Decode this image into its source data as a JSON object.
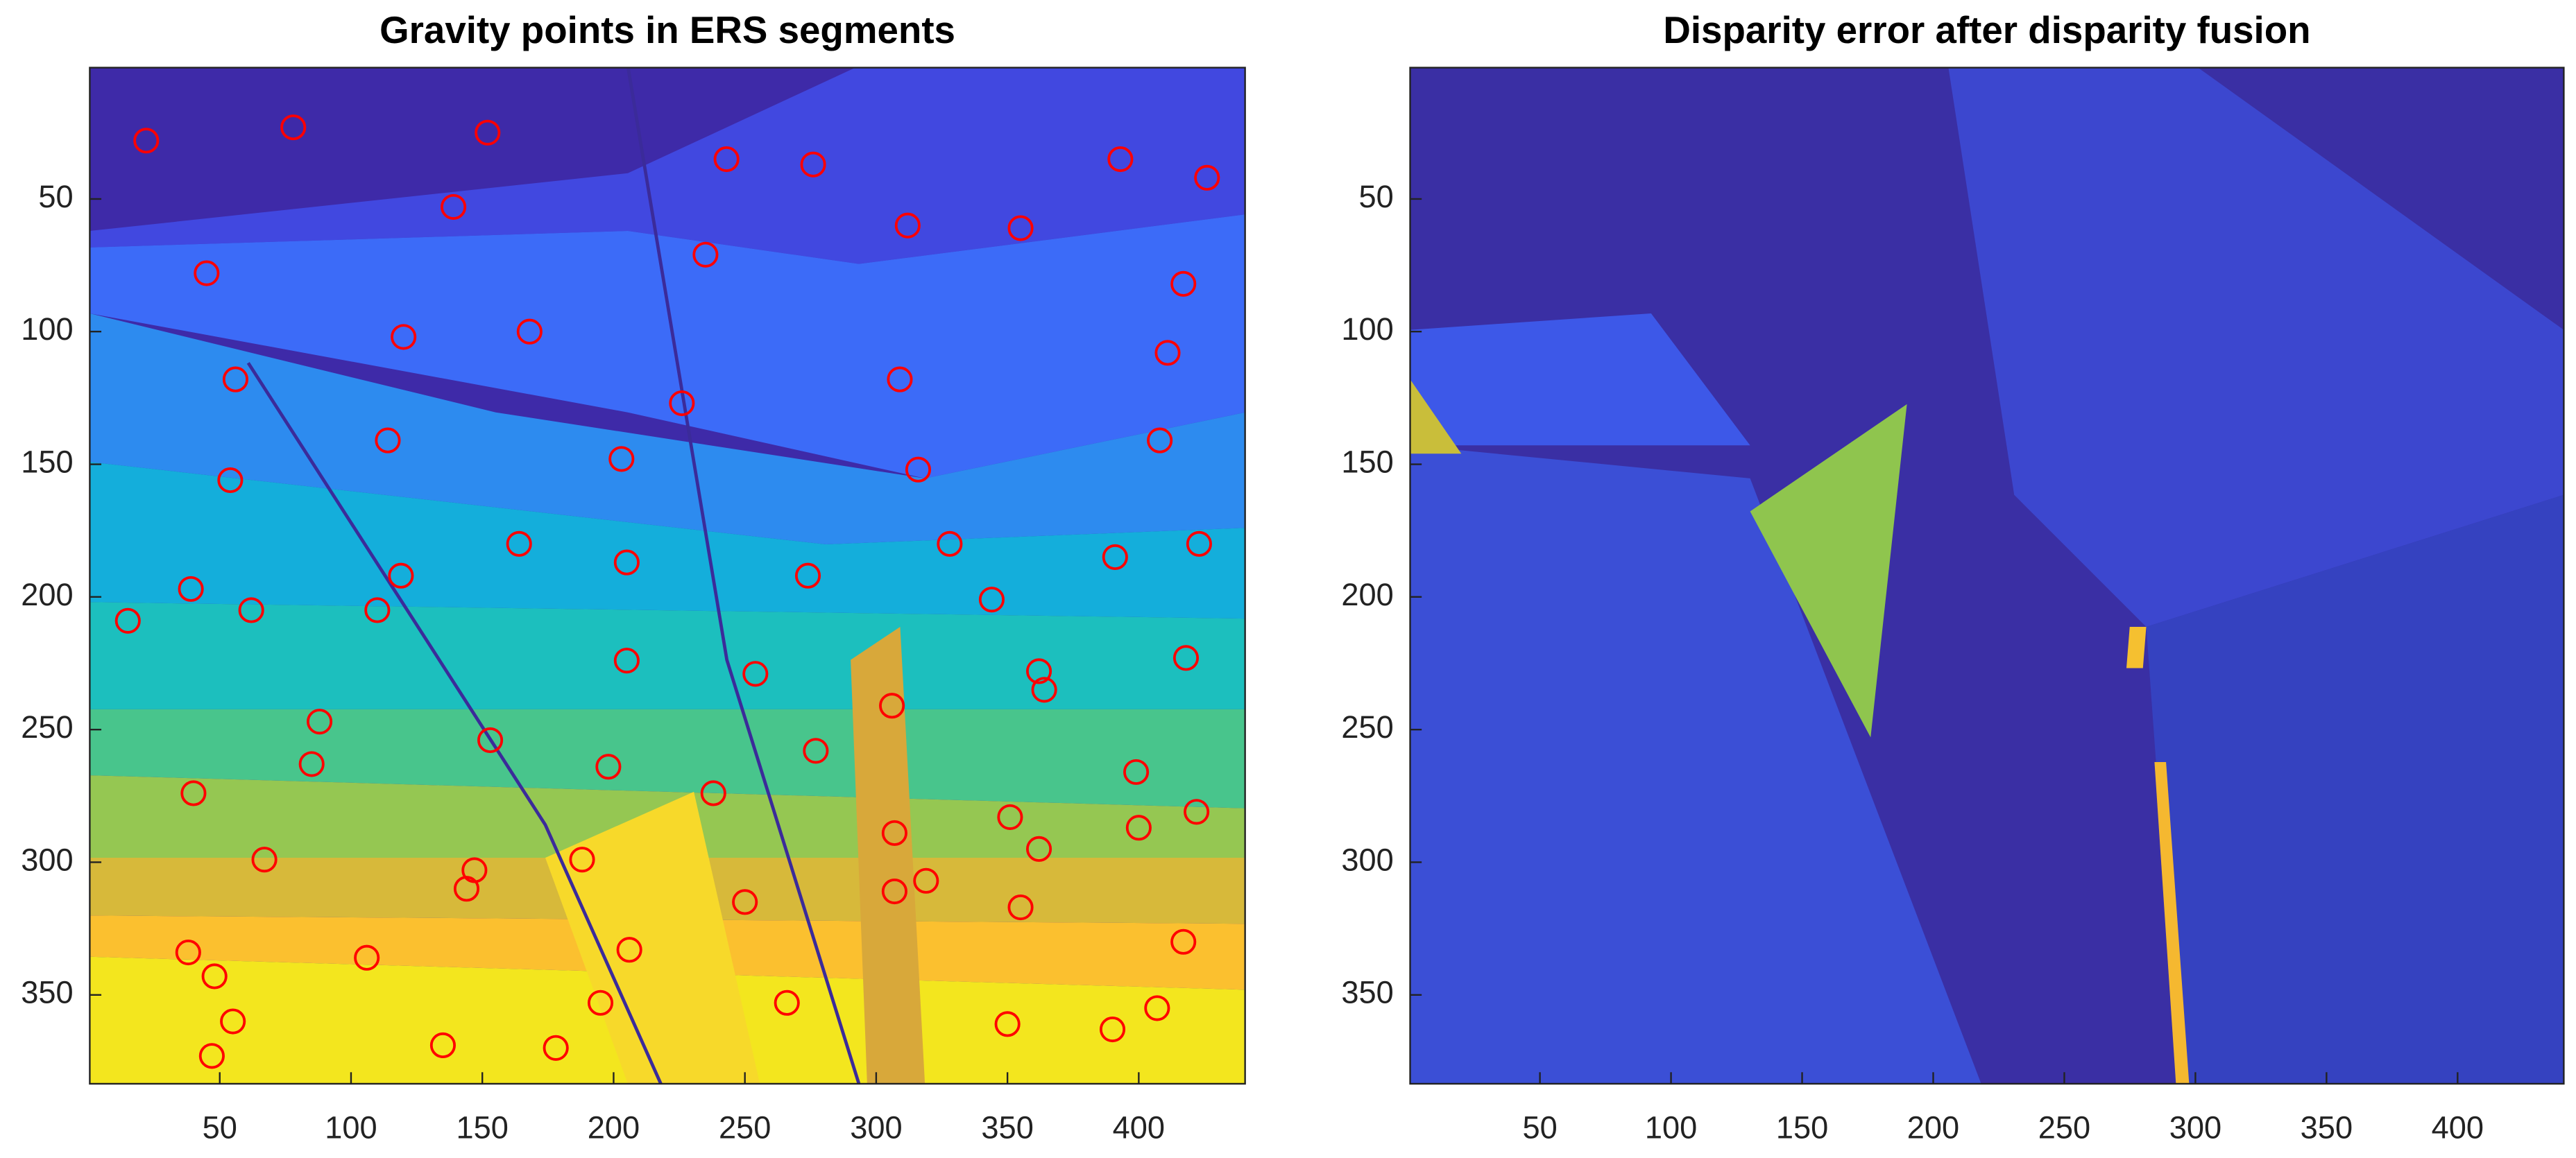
{
  "chart_data": [
    {
      "type": "scatter",
      "title": "Gravity points in ERS segments",
      "xlim": [
        0.5,
        440.5
      ],
      "ylim": [
        0.5,
        383.5
      ],
      "y_direction": "reverse",
      "xticks": [
        50,
        100,
        150,
        200,
        250,
        300,
        350,
        400
      ],
      "yticks": [
        50,
        100,
        150,
        200,
        250,
        300,
        350
      ],
      "marker": "circle",
      "color": "#ff0000",
      "x": [
        22,
        78,
        152,
        243,
        276,
        393,
        426,
        139,
        312,
        355,
        45,
        235,
        417,
        120,
        168,
        56,
        309,
        411,
        226,
        114,
        203,
        408,
        54,
        316,
        164,
        328,
        391,
        423,
        205,
        39,
        119,
        274,
        15,
        62,
        110,
        344,
        205,
        254,
        362,
        364,
        418,
        306,
        88,
        153,
        85,
        198,
        277,
        399,
        40,
        238,
        351,
        422,
        67,
        188,
        307,
        362,
        400,
        147,
        144,
        307,
        319,
        250,
        355,
        38,
        106,
        206,
        417,
        48,
        55,
        195,
        266,
        350,
        390,
        407,
        47,
        135,
        178
      ],
      "y": [
        28,
        23,
        25,
        35,
        37,
        35,
        42,
        53,
        60,
        61,
        78,
        71,
        82,
        102,
        100,
        118,
        118,
        108,
        127,
        141,
        148,
        141,
        156,
        152,
        180,
        180,
        185,
        180,
        187,
        197,
        192,
        192,
        209,
        205,
        205,
        201,
        224,
        229,
        228,
        235,
        223,
        241,
        247,
        254,
        263,
        264,
        258,
        266,
        274,
        274,
        283,
        281,
        299,
        299,
        289,
        295,
        287,
        303,
        310,
        311,
        307,
        315,
        317,
        334,
        336,
        333,
        330,
        343,
        360,
        353,
        353,
        361,
        363,
        355,
        373,
        369,
        370
      ]
    },
    {
      "type": "image",
      "title": "Disparity error after disparity fusion",
      "xlim": [
        0.5,
        440.5
      ],
      "ylim": [
        0.5,
        383.5
      ],
      "y_direction": "reverse",
      "xticks": [
        50,
        100,
        150,
        200,
        250,
        300,
        350,
        400
      ],
      "yticks": [
        50,
        100,
        150,
        200,
        250,
        300,
        350
      ]
    }
  ]
}
